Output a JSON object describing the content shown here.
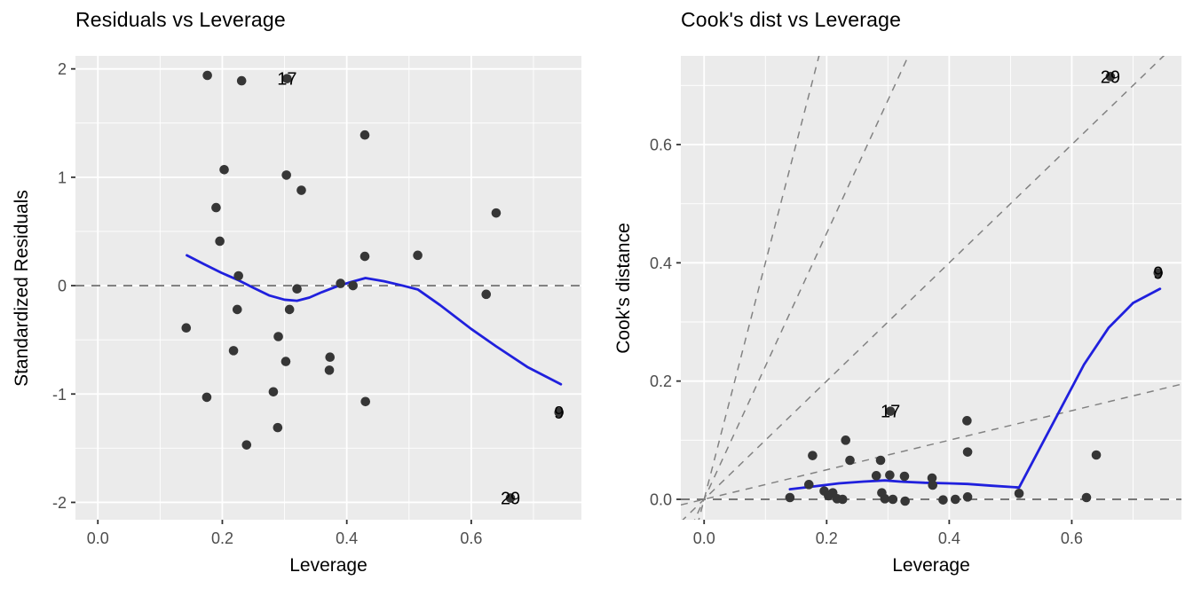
{
  "colors": {
    "background": "#FFFFFF",
    "panel_bg": "#EBEBEB",
    "grid": "#FFFFFF",
    "point": "#363636",
    "smooth_line": "#2020DD",
    "zero_line": "#666666",
    "guide_line": "#828282",
    "tick_mark": "#333333",
    "tick_label": "#4D4D4D",
    "text": "#000000"
  },
  "chart_data": [
    {
      "type": "scatter",
      "title": "Residuals vs Leverage",
      "xlabel": "Leverage",
      "ylabel": "Standardized Residuals",
      "xlim": [
        -0.036,
        0.777
      ],
      "ylim": [
        -2.16,
        2.12
      ],
      "grid": "on",
      "x_ticks": {
        "values": [
          0.0,
          0.2,
          0.4,
          0.6
        ],
        "labels": [
          "0.0",
          "0.2",
          "0.4",
          "0.6"
        ]
      },
      "y_ticks": {
        "values": [
          -2,
          -1,
          0,
          1,
          2
        ],
        "labels": [
          "-2",
          "-1",
          "0",
          "1",
          "2"
        ]
      },
      "x_minor": [
        0.1,
        0.3,
        0.5,
        0.7
      ],
      "y_minor": [
        -1.5,
        -0.5,
        0.5,
        1.5
      ],
      "hline_y": 0,
      "guide_slopes": [],
      "points": [
        [
          0.176,
          1.94
        ],
        [
          0.231,
          1.89
        ],
        [
          0.304,
          1.91
        ],
        [
          0.429,
          1.39
        ],
        [
          0.203,
          1.07
        ],
        [
          0.303,
          1.02
        ],
        [
          0.327,
          0.88
        ],
        [
          0.19,
          0.72
        ],
        [
          0.64,
          0.67
        ],
        [
          0.196,
          0.41
        ],
        [
          0.429,
          0.27
        ],
        [
          0.514,
          0.28
        ],
        [
          0.226,
          0.09
        ],
        [
          0.39,
          0.02
        ],
        [
          0.41,
          0.0
        ],
        [
          0.32,
          -0.03
        ],
        [
          0.624,
          -0.08
        ],
        [
          0.224,
          -0.22
        ],
        [
          0.308,
          -0.22
        ],
        [
          0.142,
          -0.39
        ],
        [
          0.29,
          -0.47
        ],
        [
          0.218,
          -0.6
        ],
        [
          0.373,
          -0.66
        ],
        [
          0.302,
          -0.7
        ],
        [
          0.372,
          -0.78
        ],
        [
          0.175,
          -1.03
        ],
        [
          0.282,
          -0.98
        ],
        [
          0.43,
          -1.07
        ],
        [
          0.741,
          -1.17
        ],
        [
          0.289,
          -1.31
        ],
        [
          0.239,
          -1.47
        ],
        [
          0.663,
          -1.96
        ]
      ],
      "point_labels": [
        {
          "text": "17",
          "x": 0.304,
          "y": 1.91
        },
        {
          "text": "9",
          "x": 0.741,
          "y": -1.17
        },
        {
          "text": "29",
          "x": 0.663,
          "y": -1.96
        }
      ],
      "smooth": [
        [
          0.143,
          0.28
        ],
        [
          0.17,
          0.2
        ],
        [
          0.198,
          0.12
        ],
        [
          0.226,
          0.05
        ],
        [
          0.25,
          -0.02
        ],
        [
          0.275,
          -0.09
        ],
        [
          0.3,
          -0.13
        ],
        [
          0.32,
          -0.14
        ],
        [
          0.34,
          -0.11
        ],
        [
          0.36,
          -0.06
        ],
        [
          0.385,
          -0.005
        ],
        [
          0.405,
          0.03
        ],
        [
          0.43,
          0.07
        ],
        [
          0.46,
          0.04
        ],
        [
          0.49,
          0.0
        ],
        [
          0.514,
          -0.035
        ],
        [
          0.55,
          -0.18
        ],
        [
          0.6,
          -0.4
        ],
        [
          0.64,
          -0.56
        ],
        [
          0.69,
          -0.75
        ],
        [
          0.744,
          -0.91
        ]
      ]
    },
    {
      "type": "scatter",
      "title": "Cook's dist vs Leverage",
      "xlabel": "Leverage",
      "ylabel": "Cook's distance",
      "xlim": [
        -0.038,
        0.779
      ],
      "ylim": [
        -0.0345,
        0.75
      ],
      "grid": "on",
      "x_ticks": {
        "values": [
          0.0,
          0.2,
          0.4,
          0.6
        ],
        "labels": [
          "0.0",
          "0.2",
          "0.4",
          "0.6"
        ]
      },
      "y_ticks": {
        "values": [
          0.0,
          0.2,
          0.4,
          0.6
        ],
        "labels": [
          "0.0",
          "0.2",
          "0.4",
          "0.6"
        ]
      },
      "x_minor": [
        0.1,
        0.3,
        0.5,
        0.7
      ],
      "y_minor": [
        0.1,
        0.3,
        0.5,
        0.7
      ],
      "hline_y": 0,
      "guide_slopes": [
        4.0,
        2.25,
        1.0,
        0.25
      ],
      "points": [
        [
          0.14,
          0.003
        ],
        [
          0.171,
          0.025
        ],
        [
          0.177,
          0.074
        ],
        [
          0.196,
          0.014
        ],
        [
          0.203,
          0.006
        ],
        [
          0.21,
          0.011
        ],
        [
          0.217,
          0.001
        ],
        [
          0.226,
          0.0
        ],
        [
          0.231,
          0.1
        ],
        [
          0.238,
          0.066
        ],
        [
          0.281,
          0.04
        ],
        [
          0.288,
          0.066
        ],
        [
          0.29,
          0.011
        ],
        [
          0.295,
          0.001
        ],
        [
          0.303,
          0.041
        ],
        [
          0.304,
          0.149
        ],
        [
          0.308,
          0.0
        ],
        [
          0.327,
          0.039
        ],
        [
          0.328,
          -0.003
        ],
        [
          0.372,
          0.036
        ],
        [
          0.373,
          0.024
        ],
        [
          0.39,
          -0.001
        ],
        [
          0.41,
          0.0
        ],
        [
          0.429,
          0.133
        ],
        [
          0.43,
          0.08
        ],
        [
          0.43,
          0.004
        ],
        [
          0.514,
          0.01
        ],
        [
          0.624,
          0.003
        ],
        [
          0.64,
          0.075
        ],
        [
          0.663,
          0.715
        ],
        [
          0.741,
          0.383
        ]
      ],
      "point_labels": [
        {
          "text": "29",
          "x": 0.663,
          "y": 0.715
        },
        {
          "text": "9",
          "x": 0.741,
          "y": 0.383
        },
        {
          "text": "17",
          "x": 0.304,
          "y": 0.149
        }
      ],
      "smooth": [
        [
          0.14,
          0.017
        ],
        [
          0.18,
          0.022
        ],
        [
          0.22,
          0.027
        ],
        [
          0.26,
          0.03
        ],
        [
          0.295,
          0.032
        ],
        [
          0.32,
          0.03
        ],
        [
          0.36,
          0.028
        ],
        [
          0.4,
          0.027
        ],
        [
          0.43,
          0.026
        ],
        [
          0.47,
          0.023
        ],
        [
          0.514,
          0.02
        ],
        [
          0.62,
          0.228
        ],
        [
          0.66,
          0.29
        ],
        [
          0.7,
          0.332
        ],
        [
          0.744,
          0.356
        ]
      ]
    }
  ]
}
